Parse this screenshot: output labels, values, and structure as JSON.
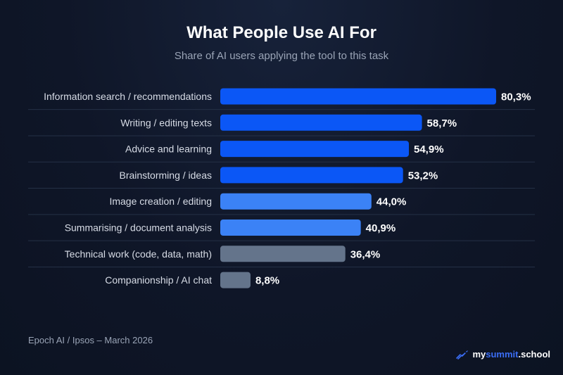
{
  "header": {
    "title": "What People Use AI For",
    "subtitle": "Share of AI users applying the tool to this task"
  },
  "chart_data": {
    "type": "bar",
    "orientation": "horizontal",
    "title": "What People Use AI For",
    "subtitle": "Share of AI users applying the tool to this task",
    "xlim": [
      0,
      100
    ],
    "grid": false,
    "categories": [
      "Information search / recommendations",
      "Writing / editing texts",
      "Advice and learning",
      "Brainstorming / ideas",
      "Image creation / editing",
      "Summarising / document analysis",
      "Technical work (code, data, math)",
      "Companionship / AI chat"
    ],
    "values": [
      80.3,
      58.7,
      54.9,
      53.2,
      44.0,
      40.9,
      36.4,
      8.8
    ],
    "value_labels": [
      "80,3%",
      "58,7%",
      "54,9%",
      "53,2%",
      "44,0%",
      "40,9%",
      "36,4%",
      "8,8%"
    ],
    "bar_colors": [
      "#0b57f6",
      "#0b57f6",
      "#0b57f6",
      "#0b57f6",
      "#3b82f6",
      "#3b82f6",
      "#64748b",
      "#64748b"
    ]
  },
  "footer": {
    "source": "Epoch AI / Ipsos – March 2026",
    "brand_part1": "my",
    "brand_part2": "summit",
    "brand_part3": ".school",
    "brand_icon": "rocket-icon"
  }
}
